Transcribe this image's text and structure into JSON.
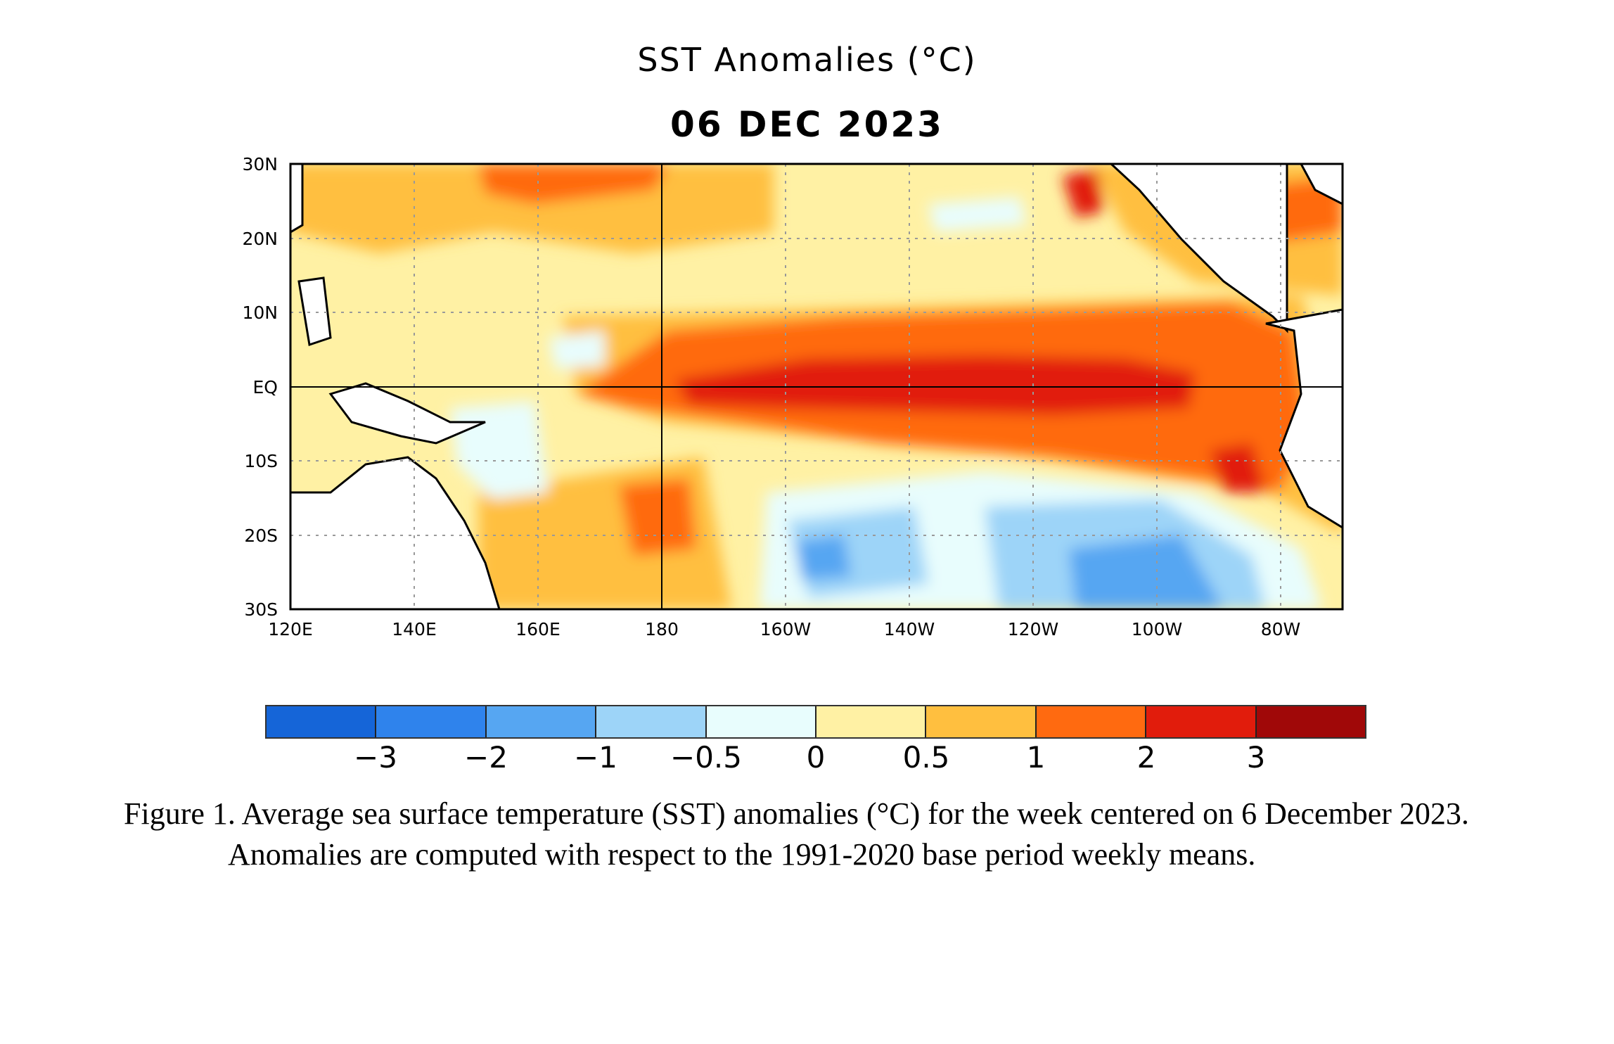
{
  "figure": {
    "title": "SST Anomalies (°C)",
    "date": "06 DEC 2023",
    "caption": "Figure 1. Average sea surface temperature (SST) anomalies (°C) for the week centered on 6 December 2023.  Anomalies are computed with respect to the 1991-2020 base period weekly means."
  },
  "map": {
    "lat_labels": [
      "30N",
      "20N",
      "10N",
      "EQ",
      "10S",
      "20S",
      "30S"
    ],
    "lon_labels": [
      "120E",
      "140E",
      "160E",
      "180",
      "160W",
      "140W",
      "120W",
      "100W",
      "80W"
    ],
    "lat_range": [
      -30,
      30
    ],
    "lon_range": [
      120,
      290
    ]
  },
  "colorbar": {
    "colors": [
      "#1565d8",
      "#2f83ec",
      "#56a6f2",
      "#9dd4f8",
      "#e8fdfd",
      "#fff1a4",
      "#ffbf3f",
      "#ff6a10",
      "#e11c0c",
      "#a00808"
    ],
    "ticks": [
      "−3",
      "−2",
      "−1",
      "−0.5",
      "0",
      "0.5",
      "1",
      "2",
      "3"
    ]
  }
}
